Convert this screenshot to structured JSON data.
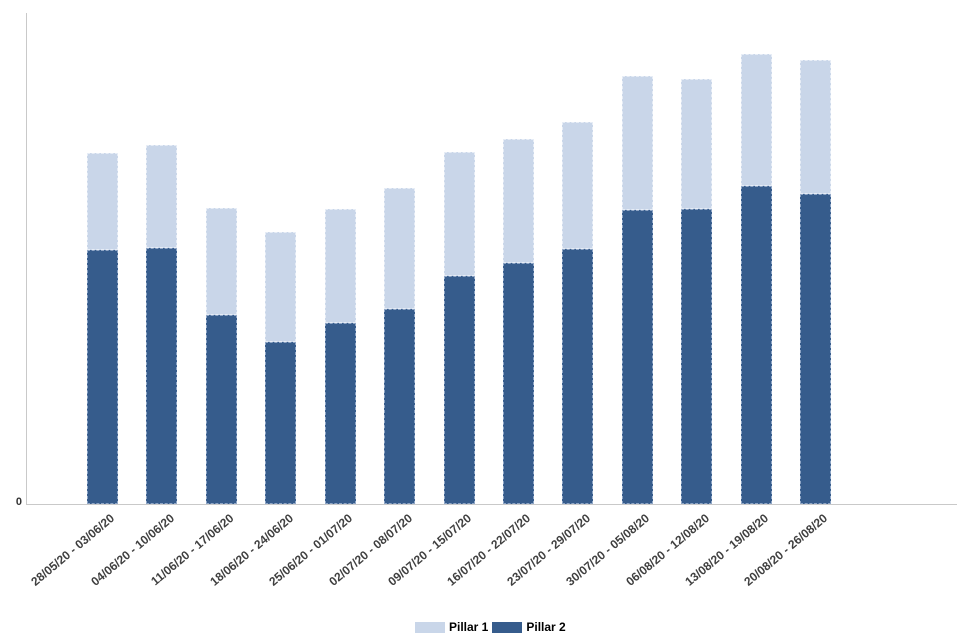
{
  "chart_data": {
    "type": "bar",
    "stacked": true,
    "title": "",
    "xlabel": "",
    "ylabel": "",
    "categories": [
      "28/05/20 - 03/06/20",
      "04/06/20 - 10/06/20",
      "11/06/20 - 17/06/20",
      "18/06/20 - 24/06/20",
      "25/06/20 - 01/07/20",
      "02/07/20 - 08/07/20",
      "09/07/20 - 15/07/20",
      "16/07/20 - 22/07/20",
      "23/07/20 - 29/07/20",
      "30/07/20 - 05/08/20",
      "06/08/20 - 12/08/20",
      "13/08/20 - 19/08/20",
      "20/08/20 - 26/08/20"
    ],
    "series": [
      {
        "name": "Pillar 1",
        "color": "#c9d6e9",
        "stack_position": "top",
        "values": [
          97,
          103,
          107,
          110,
          114,
          121,
          124,
          124,
          127,
          134,
          130,
          132,
          134
        ]
      },
      {
        "name": "Pillar 2",
        "color": "#365c8c",
        "stack_position": "bottom",
        "values": [
          254,
          256,
          189,
          162,
          181,
          195,
          228,
          241,
          255,
          294,
          295,
          318,
          310
        ]
      }
    ],
    "ylim": [
      0,
      491
    ],
    "y_tick_labels": [
      "0"
    ],
    "grid": false,
    "legend_position": "bottom-center"
  },
  "axes": {
    "zero_label": "0",
    "axis_color": "#c9c9c9",
    "label_color": "#3f3f3f"
  }
}
